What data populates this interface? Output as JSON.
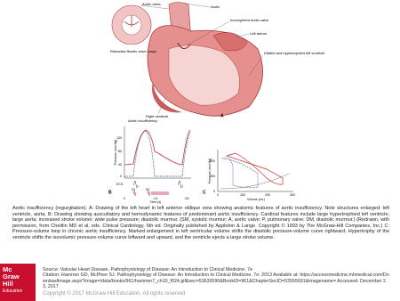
{
  "figure": {
    "panel_a": {
      "letter": "A",
      "labels": [
        "Aortic valve",
        "Aorta",
        "Incompetent aortic valve",
        "Left atrium",
        "Dilated and hypertrophied left ventricle",
        "Retracted fibrotic valve cusps",
        "Right ventricle"
      ]
    },
    "panel_b": {
      "letter": "B",
      "title": "Aortic insufficiency",
      "y_label": "Pressure (mm Hg)",
      "x_label": "Time (s)",
      "yticks": [
        "0",
        "40",
        "80",
        "120"
      ],
      "xticks": [
        "0",
        "0.4",
        "0.8"
      ],
      "ecg": "ECG",
      "heart_sounds": [
        "S1",
        "S2"
      ]
    },
    "panel_c": {
      "letter": "C",
      "y_label": "Pressure (mm Hg)",
      "x_label": "Volume (mL)",
      "yticks": [
        "0",
        "100",
        "200"
      ],
      "xticks": [
        "0",
        "100",
        "200",
        "300"
      ]
    }
  },
  "caption": "Aortic insufficiency (regurgitation). A: Drawing of the left heart in left anterior oblique view showing anatomic features of aortic insufficiency. Note structures enlarged: left ventricle, aorta. B: Drawing showing auscultatory and hemodynamic features of predominant aortic insufficiency. Cardinal features include large hypertrophied left ventricle; large aorta; increased stroke volume; wide pulse pressure; diastolic murmur. (SM, systolic murmur; A, aortic valve; P, pulmonary valve; DM, diastolic murmur.) (Redrawn, with permission, from Cheitlin MD et al, eds. Clinical Cardiology, 6th ed. Originally published by Appleton & Lange. Copyright © 1993 by The McGraw-Hill Companies, Inc.) C: Pressure-volume loop in chronic aortic insufficiency. Marked enlargement in left ventricular volume shifts the diastolic pressure-volume curve rightward. Hypertrophy of the ventricle shifts the isovolumic pressure-volume curve leftward and upward, and the ventricle ejects a large stroke volume.",
  "source": "Source: Valvular Heart Disease, Pathophysiology of Disease: An Introduction to Clinical Medicine, 7e",
  "citation": "Citation: Hammer GD, McPhee SJ. Pathophysiology of Disease: An Introduction to Clinical Medicine, 7e; 2013 Available at: https://accessmedicine.mhmedical.com/DownloadImage.aspx?image=/data/books/961/hammer7_ch10_f024.gif&sec=53630090&BookID=961&ChapterSecID=53555691&imagename= Accessed: December 23, 2017",
  "copyright": "Copyright © 2017 McGraw-Hill Education. All rights reserved",
  "logo": [
    "Mc",
    "Graw",
    "Hill",
    "Education"
  ]
}
